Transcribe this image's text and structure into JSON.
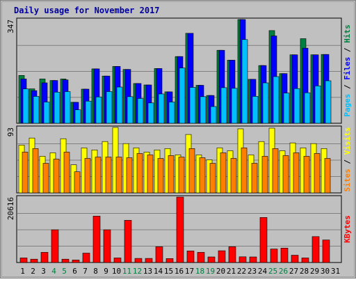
{
  "chart_data": {
    "type": "bar",
    "title": "Daily usage for November 2017",
    "categories": [
      "1",
      "2",
      "3",
      "4",
      "5",
      "6",
      "7",
      "8",
      "9",
      "10",
      "11",
      "12",
      "13",
      "14",
      "15",
      "16",
      "17",
      "18",
      "19",
      "20",
      "21",
      "22",
      "23",
      "24",
      "25",
      "26",
      "27",
      "28",
      "29",
      "30",
      "31"
    ],
    "weekend_days": [
      "4",
      "5",
      "11",
      "12",
      "18",
      "19",
      "25",
      "26"
    ],
    "panels": [
      {
        "id": "hits",
        "ymax_label": "347",
        "ymax": 347,
        "axis_labels": [
          "Pages",
          "Files",
          "Hits"
        ],
        "series": [
          {
            "name": "Hits",
            "color": "#008040",
            "values": [
              160,
              115,
              148,
              143,
              148,
              70,
              114,
              182,
              158,
              190,
              180,
              133,
              128,
              183,
              105,
              223,
              301,
              127,
              93,
              244,
              211,
              347,
              147,
              193,
              310,
              166,
              229,
              283,
              229,
              230,
              0
            ]
          },
          {
            "name": "Files",
            "color": "#0000ff",
            "values": [
              148,
              109,
              135,
              143,
              145,
              70,
              114,
              182,
              158,
              190,
              180,
              133,
              128,
              183,
              105,
              223,
              301,
              127,
              93,
              244,
              211,
              347,
              147,
              193,
              292,
              166,
              229,
              251,
              229,
              230,
              0
            ]
          },
          {
            "name": "Pages",
            "color": "#00c0ff",
            "values": [
              115,
              90,
              71,
              104,
              106,
              45,
              74,
              88,
              106,
              121,
              89,
              83,
              68,
              98,
              71,
              185,
              120,
              89,
              56,
              119,
              117,
              280,
              90,
              135,
              156,
              101,
              116,
              102,
              125,
              142,
              0
            ]
          }
        ]
      },
      {
        "id": "visits",
        "ymax_label": "93",
        "ymax": 93,
        "axis_labels": [
          "Sites",
          "Visits"
        ],
        "series": [
          {
            "name": "Visits",
            "color": "#ffff00",
            "values": [
              68,
              78,
              52,
              57,
              77,
              40,
              64,
              61,
              73,
              93,
              70,
              64,
              58,
              61,
              63,
              54,
              83,
              54,
              47,
              64,
              60,
              91,
              54,
              73,
              92,
              60,
              71,
              64,
              70,
              63,
              0
            ]
          },
          {
            "name": "Sites",
            "color": "#ff8000",
            "values": [
              58,
              63,
              42,
              48,
              58,
              30,
              49,
              51,
              51,
              51,
              50,
              56,
              54,
              49,
              53,
              51,
              63,
              50,
              42,
              57,
              49,
              64,
              42,
              52,
              63,
              53,
              57,
              52,
              56,
              49,
              0
            ]
          }
        ]
      },
      {
        "id": "kbytes",
        "ymax_label": "20616",
        "ymax": 20616,
        "axis_labels": [
          "KBytes"
        ],
        "series": [
          {
            "name": "KBytes",
            "color": "#ff0000",
            "values": [
              1450,
              1050,
              3200,
              10300,
              1050,
              800,
              2950,
              14600,
              10300,
              1450,
              13300,
              1300,
              1300,
              4950,
              1250,
              20616,
              3650,
              3200,
              1750,
              3700,
              4950,
              1800,
              1750,
              14200,
              4250,
              4550,
              2300,
              1450,
              8150,
              7100,
              0
            ]
          }
        ]
      }
    ],
    "grid": true,
    "legend": "right"
  }
}
